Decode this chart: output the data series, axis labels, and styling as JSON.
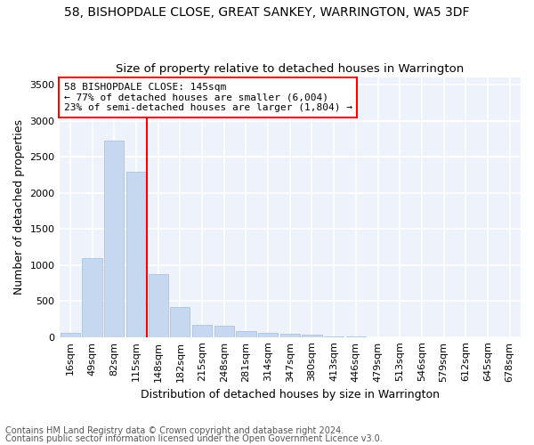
{
  "title": "58, BISHOPDALE CLOSE, GREAT SANKEY, WARRINGTON, WA5 3DF",
  "subtitle": "Size of property relative to detached houses in Warrington",
  "xlabel": "Distribution of detached houses by size in Warrington",
  "ylabel": "Number of detached properties",
  "bar_color": "#c5d8f0",
  "bar_edge_color": "#a0bedd",
  "categories": [
    "16sqm",
    "49sqm",
    "82sqm",
    "115sqm",
    "148sqm",
    "182sqm",
    "215sqm",
    "248sqm",
    "281sqm",
    "314sqm",
    "347sqm",
    "380sqm",
    "413sqm",
    "446sqm",
    "479sqm",
    "513sqm",
    "546sqm",
    "579sqm",
    "612sqm",
    "645sqm",
    "678sqm"
  ],
  "values": [
    55,
    1100,
    2730,
    2290,
    870,
    420,
    165,
    160,
    80,
    55,
    45,
    30,
    10,
    10,
    0,
    0,
    0,
    0,
    0,
    0,
    0
  ],
  "ylim": [
    0,
    3600
  ],
  "yticks": [
    0,
    500,
    1000,
    1500,
    2000,
    2500,
    3000,
    3500
  ],
  "annotation_text": "58 BISHOPDALE CLOSE: 145sqm\n← 77% of detached houses are smaller (6,004)\n23% of semi-detached houses are larger (1,804) →",
  "footer_line1": "Contains HM Land Registry data © Crown copyright and database right 2024.",
  "footer_line2": "Contains public sector information licensed under the Open Government Licence v3.0.",
  "background_color": "#eef2fb",
  "grid_color": "#ffffff",
  "title_fontsize": 10,
  "subtitle_fontsize": 9.5,
  "axis_label_fontsize": 9,
  "tick_fontsize": 8,
  "annotation_fontsize": 8,
  "footer_fontsize": 7
}
